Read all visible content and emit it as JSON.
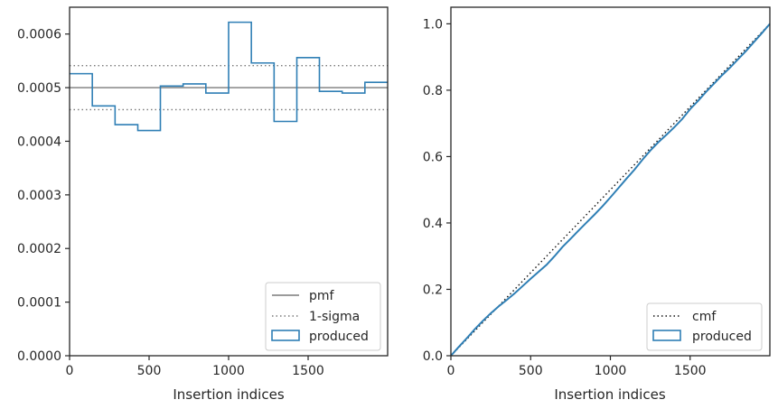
{
  "colors": {
    "produced": "#2f7fb5",
    "pmf": "#7a7a7a",
    "sigma": "#7a7a7a",
    "cmf": "#111111",
    "axes": "#262626"
  },
  "chart_data": [
    {
      "type": "line",
      "title": "",
      "xlabel": "Insertion indices",
      "ylabel": "",
      "xlim": [
        0,
        2000
      ],
      "ylim": [
        0,
        0.00065
      ],
      "xticks": [
        0,
        500,
        1000,
        1500
      ],
      "xtick_labels": [
        "0",
        "500",
        "1000",
        "1500"
      ],
      "yticks": [
        0,
        0.0001,
        0.0002,
        0.0003,
        0.0004,
        0.0005,
        0.0006
      ],
      "ytick_labels": [
        "0.0000",
        "0.0001",
        "0.0002",
        "0.0003",
        "0.0004",
        "0.0005",
        "0.0006"
      ],
      "grid": false,
      "legend_position": "lower-right",
      "series": [
        {
          "name": "pmf",
          "style": "solid",
          "values": [
            0.0005
          ]
        },
        {
          "name": "1-sigma",
          "style": "dotted",
          "values": [
            0.000541,
            0.000459
          ]
        },
        {
          "name": "produced",
          "style": "step-histogram",
          "bin_edges": [
            0,
            143,
            286,
            429,
            571,
            714,
            857,
            1000,
            1143,
            1286,
            1429,
            1571,
            1714,
            1857,
            2000
          ],
          "values": [
            0.000526,
            0.000466,
            0.000431,
            0.00042,
            0.000503,
            0.000507,
            0.00049,
            0.000622,
            0.000546,
            0.000437,
            0.000556,
            0.000493,
            0.00049,
            0.00051
          ]
        }
      ]
    },
    {
      "type": "line",
      "title": "",
      "xlabel": "Insertion indices",
      "ylabel": "",
      "xlim": [
        0,
        2000
      ],
      "ylim": [
        0,
        1.05
      ],
      "xticks": [
        0,
        500,
        1000,
        1500
      ],
      "xtick_labels": [
        "0",
        "500",
        "1000",
        "1500"
      ],
      "yticks": [
        0,
        0.2,
        0.4,
        0.6,
        0.8,
        1.0
      ],
      "ytick_labels": [
        "0.0",
        "0.2",
        "0.4",
        "0.6",
        "0.8",
        "1.0"
      ],
      "grid": false,
      "legend_position": "lower-right",
      "series": [
        {
          "name": "cmf",
          "style": "dotted",
          "x": [
            0,
            2000
          ],
          "y": [
            0,
            1.0
          ]
        },
        {
          "name": "produced",
          "style": "solid",
          "x": [
            0,
            50,
            100,
            150,
            200,
            250,
            300,
            350,
            400,
            450,
            500,
            550,
            600,
            650,
            700,
            750,
            800,
            850,
            900,
            950,
            1000,
            1050,
            1100,
            1150,
            1200,
            1250,
            1300,
            1350,
            1400,
            1450,
            1500,
            1550,
            1600,
            1650,
            1700,
            1750,
            1800,
            1850,
            1900,
            1950,
            2000
          ],
          "y": [
            0,
            0.027,
            0.053,
            0.08,
            0.105,
            0.128,
            0.149,
            0.168,
            0.188,
            0.21,
            0.232,
            0.253,
            0.274,
            0.3,
            0.328,
            0.352,
            0.377,
            0.401,
            0.425,
            0.45,
            0.477,
            0.505,
            0.533,
            0.56,
            0.59,
            0.618,
            0.643,
            0.665,
            0.688,
            0.713,
            0.743,
            0.768,
            0.795,
            0.82,
            0.845,
            0.868,
            0.893,
            0.918,
            0.945,
            0.972,
            1.0
          ]
        }
      ]
    }
  ]
}
